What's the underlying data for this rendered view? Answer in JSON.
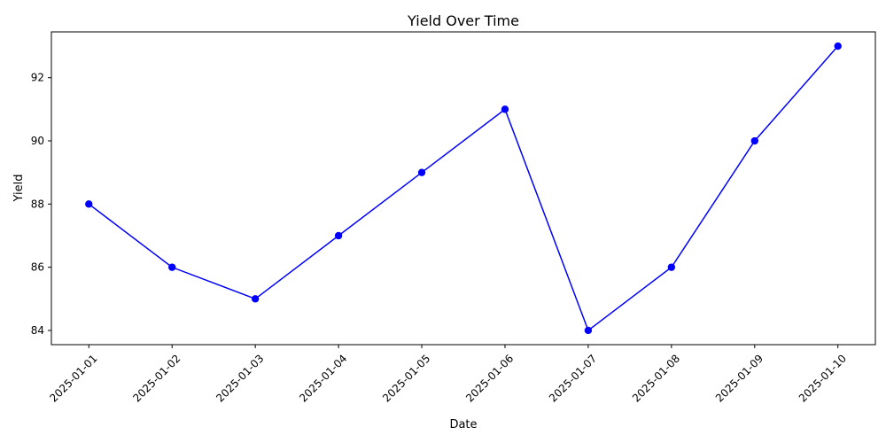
{
  "chart_data": {
    "type": "line",
    "title": "Yield Over Time",
    "xlabel": "Date",
    "ylabel": "Yield",
    "categories": [
      "2025-01-01",
      "2025-01-02",
      "2025-01-03",
      "2025-01-04",
      "2025-01-05",
      "2025-01-06",
      "2025-01-07",
      "2025-01-08",
      "2025-01-09",
      "2025-01-10"
    ],
    "series": [
      {
        "values": [
          88,
          86,
          85,
          87,
          89,
          91,
          84,
          86,
          90,
          93
        ],
        "color": "#0000ff",
        "marker": "circle"
      }
    ],
    "ylim": [
      83.55,
      93.45
    ],
    "yticks": [
      "84",
      "86",
      "88",
      "90",
      "92"
    ],
    "grid": false,
    "x_tick_rotation": 45
  }
}
